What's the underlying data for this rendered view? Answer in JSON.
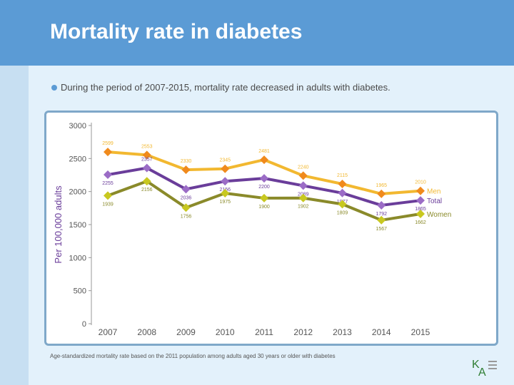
{
  "title": "Mortality rate in diabetes",
  "bullet": "During the period of 2007-2015, mortality rate decreased in adults with diabetes.",
  "footnote": "Age-standardized mortality rate based on the 2011 population among adults aged 30 years or older with diabetes",
  "logo_text": "KDA Korean Diabetes Association",
  "chart_data": {
    "type": "line",
    "ylabel": "Per 100,000 adults",
    "ylim": [
      0,
      3000
    ],
    "yticks": [
      0,
      500,
      1000,
      1500,
      2000,
      2500,
      3000
    ],
    "categories": [
      "2007",
      "2008",
      "2009",
      "2010",
      "2011",
      "2012",
      "2013",
      "2014",
      "2015"
    ],
    "grid": false,
    "legend": "right, end-of-line labels",
    "series": [
      {
        "name": "Men",
        "color": "#f2b830",
        "marker": "#f08a1c",
        "values": [
          2599,
          2553,
          2330,
          2345,
          2481,
          2240,
          2115,
          1965,
          2010
        ]
      },
      {
        "name": "Total",
        "color": "#6a3d9a",
        "marker": "#9b6cc6",
        "values": [
          2255,
          2357,
          2036,
          2156,
          2200,
          2089,
          1977,
          1792,
          1865
        ]
      },
      {
        "name": "Women",
        "color": "#8a8a2a",
        "marker": "#c8c820",
        "values": [
          1939,
          2156,
          1756,
          1975,
          1900,
          1902,
          1809,
          1567,
          1662
        ]
      }
    ]
  }
}
